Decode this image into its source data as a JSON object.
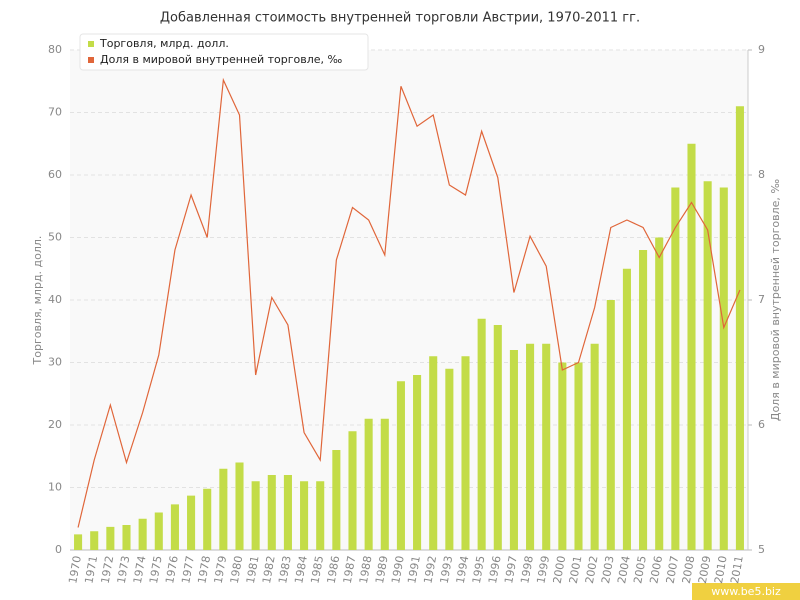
{
  "chart_data": {
    "type": "bar",
    "title": "Добавленная стоимость внутренней торговли Австрии, 1970-2011 гг.",
    "ylabel": "Торговля, млрд. долл.",
    "y2label": "Доля в мировой внутренней торговле, ‰",
    "watermark": "www.be5.biz",
    "categories": [
      "1970",
      "1971",
      "1972",
      "1973",
      "1974",
      "1975",
      "1976",
      "1977",
      "1978",
      "1979",
      "1980",
      "1981",
      "1982",
      "1983",
      "1984",
      "1985",
      "1986",
      "1987",
      "1988",
      "1989",
      "1990",
      "1991",
      "1992",
      "1993",
      "1994",
      "1995",
      "1996",
      "1997",
      "1998",
      "1999",
      "2000",
      "2001",
      "2002",
      "2003",
      "2004",
      "2005",
      "2006",
      "2007",
      "2008",
      "2009",
      "2010",
      "2011"
    ],
    "series": [
      {
        "name": "Торговля, млрд. долл.",
        "color": "#c3dc48",
        "type": "bar",
        "values": [
          2.5,
          3,
          3.7,
          4,
          5,
          6,
          7.3,
          8.7,
          9.8,
          13,
          14,
          11,
          12,
          12,
          11,
          11,
          16,
          19,
          21,
          21,
          27,
          28,
          31,
          29,
          31,
          37,
          36,
          32,
          33,
          33,
          30,
          30,
          33,
          40,
          45,
          48,
          50,
          58,
          65,
          59,
          58,
          71
        ]
      },
      {
        "name": "Доля в мировой внутренней торговле, ‰",
        "color": "#e0663a",
        "type": "line",
        "axis": "y2",
        "values": [
          5.18,
          5.72,
          6.16,
          5.7,
          6.1,
          6.56,
          7.4,
          7.84,
          7.5,
          8.76,
          8.48,
          6.4,
          7.02,
          6.8,
          5.94,
          5.72,
          7.32,
          7.74,
          7.64,
          7.36,
          8.71,
          8.39,
          8.48,
          7.92,
          7.84,
          8.35,
          7.98,
          7.06,
          7.51,
          7.27,
          6.44,
          6.5,
          6.94,
          7.58,
          7.64,
          7.58,
          7.34,
          7.58,
          7.78,
          7.56,
          6.78,
          7.08
        ]
      }
    ],
    "ylim": [
      0,
      80
    ],
    "yticks": [
      0,
      10,
      20,
      30,
      40,
      50,
      60,
      70,
      80
    ],
    "y2lim": [
      5,
      9
    ],
    "y2ticks": [
      5,
      6,
      7,
      8,
      9
    ],
    "grid": true,
    "legend": "top-left"
  }
}
